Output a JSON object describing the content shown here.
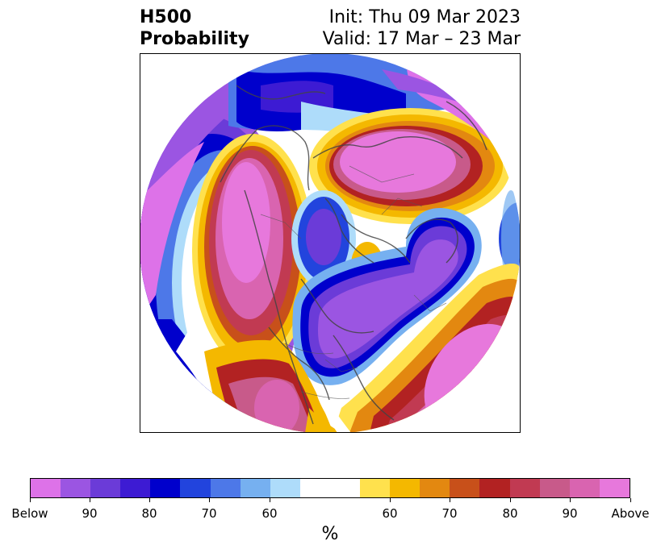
{
  "title": {
    "left_line1": "H500",
    "left_line2": "Probability",
    "init": "Init: Thu 09 Mar 2023",
    "valid": "Valid: 17 Mar – 23 Mar"
  },
  "colorbar": {
    "colors": [
      "#dd72e8",
      "#9b55e2",
      "#6b3bd8",
      "#3d1bd3",
      "#0000cc",
      "#2244dd",
      "#4d78e8",
      "#76b0f0",
      "#aedcfa",
      "#ffffff",
      "#ffe14d",
      "#f4b800",
      "#e38810",
      "#c8501a",
      "#b22222",
      "#c13a52",
      "#c85a8a",
      "#d964b0",
      "#e778dc"
    ],
    "labels": [
      "Below",
      "90",
      "80",
      "70",
      "60",
      "60",
      "70",
      "80",
      "90",
      "Above"
    ],
    "unit": "%"
  },
  "map": {
    "projection": "polar stereographic (north pole)",
    "variable": "H500 probability anomaly",
    "regions": [
      {
        "name": "north-pacific-above",
        "category": "Above"
      },
      {
        "name": "siberia-above",
        "category": "Above"
      },
      {
        "name": "atlantic-above",
        "category": "Above"
      },
      {
        "name": "north-america-below",
        "category": "Below"
      },
      {
        "name": "west-pacific-below",
        "category": "Below"
      },
      {
        "name": "arctic-below",
        "category": "Below"
      }
    ]
  }
}
